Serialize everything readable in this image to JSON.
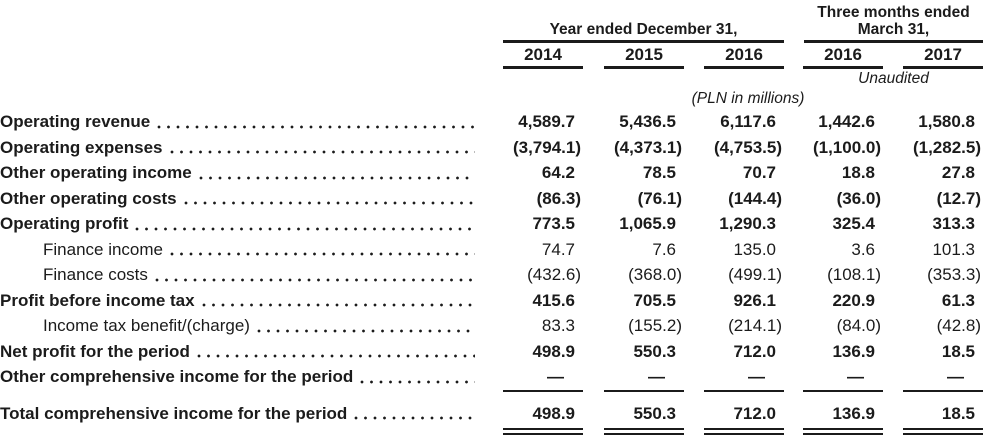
{
  "colors": {
    "text": "#1b1b1b",
    "background": "#ffffff"
  },
  "table": {
    "column_groups": [
      {
        "label": "Year ended December 31,",
        "span": 3
      },
      {
        "label": "Three months ended March 31,",
        "span": 2
      }
    ],
    "year_columns": [
      "2014",
      "2015",
      "2016",
      "2016",
      "2017"
    ],
    "unaudited_note": "Unaudited",
    "units_note": "(PLN in millions)",
    "rows": [
      {
        "label": "Operating revenue",
        "bold": true,
        "indent": false,
        "values": [
          "4,589.7",
          "5,436.5",
          "6,117.6",
          "1,442.6",
          "1,580.8"
        ]
      },
      {
        "label": "Operating expenses",
        "bold": true,
        "indent": false,
        "values": [
          "(3,794.1)",
          "(4,373.1)",
          "(4,753.5)",
          "(1,100.0)",
          "(1,282.5)"
        ]
      },
      {
        "label": "Other operating income",
        "bold": true,
        "indent": false,
        "values": [
          "64.2",
          "78.5",
          "70.7",
          "18.8",
          "27.8"
        ]
      },
      {
        "label": "Other operating costs",
        "bold": true,
        "indent": false,
        "values": [
          "(86.3)",
          "(76.1)",
          "(144.4)",
          "(36.0)",
          "(12.7)"
        ]
      },
      {
        "label": "Operating profit",
        "bold": true,
        "indent": false,
        "values": [
          "773.5",
          "1,065.9",
          "1,290.3",
          "325.4",
          "313.3"
        ]
      },
      {
        "label": "Finance income",
        "bold": false,
        "indent": true,
        "values": [
          "74.7",
          "7.6",
          "135.0",
          "3.6",
          "101.3"
        ]
      },
      {
        "label": "Finance costs",
        "bold": false,
        "indent": true,
        "values": [
          "(432.6)",
          "(368.0)",
          "(499.1)",
          "(108.1)",
          "(353.3)"
        ]
      },
      {
        "label": "Profit before income tax",
        "bold": true,
        "indent": false,
        "values": [
          "415.6",
          "705.5",
          "926.1",
          "220.9",
          "61.3"
        ]
      },
      {
        "label": "Income tax benefit/(charge)",
        "bold": false,
        "indent": true,
        "values": [
          "83.3",
          "(155.2)",
          "(214.1)",
          "(84.0)",
          "(42.8)"
        ]
      },
      {
        "label": "Net profit for the period",
        "bold": true,
        "indent": false,
        "values": [
          "498.9",
          "550.3",
          "712.0",
          "136.9",
          "18.5"
        ]
      },
      {
        "label": "Other comprehensive income for the period",
        "bold": true,
        "indent": false,
        "values": [
          "—",
          "—",
          "—",
          "—",
          "—"
        ],
        "rule_below": "single"
      },
      {
        "label": "Total comprehensive income for the period",
        "bold": true,
        "indent": false,
        "values": [
          "498.9",
          "550.3",
          "712.0",
          "136.9",
          "18.5"
        ],
        "rule_below": "double",
        "gap_above": true
      }
    ]
  }
}
